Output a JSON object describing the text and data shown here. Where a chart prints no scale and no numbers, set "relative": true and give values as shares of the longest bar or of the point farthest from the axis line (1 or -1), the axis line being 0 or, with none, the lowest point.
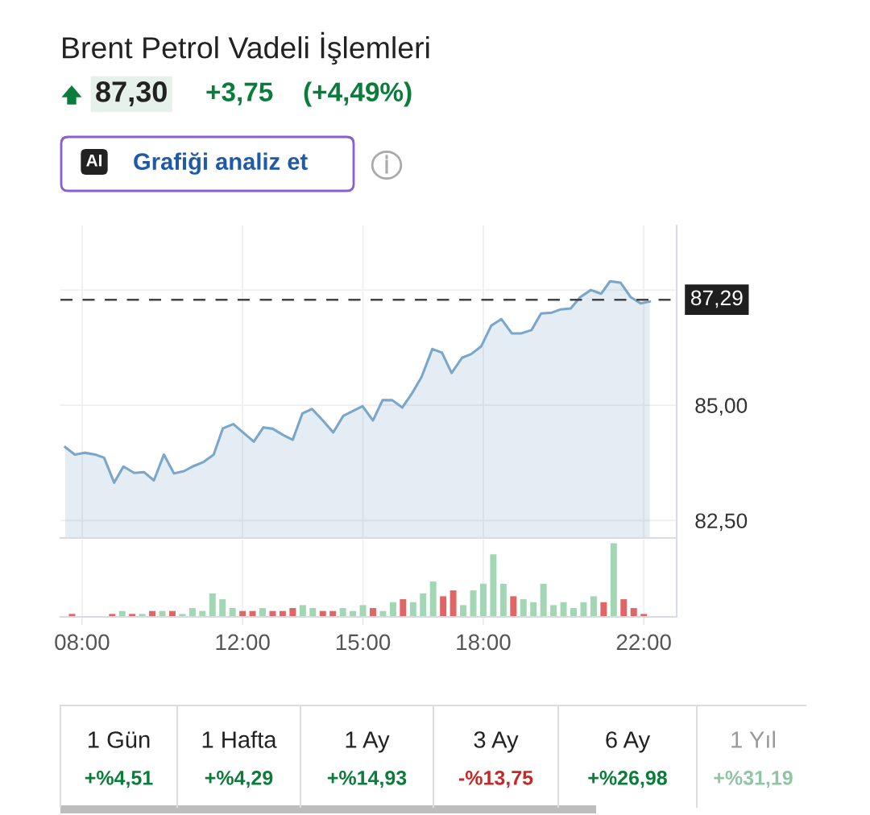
{
  "chart_data": [
    {
      "type": "area",
      "title": "Brent Petrol Vadeli İşlemleri",
      "annotations": [
        "87,30",
        "+3,75",
        "(+4,49%)",
        "AI",
        "Grafiği analiz et"
      ],
      "series": [
        {
          "color": "#7aa6ca",
          "x": [
            7.58,
            7.82,
            8.06,
            8.33,
            8.55,
            8.8,
            9.03,
            9.3,
            9.54,
            9.79,
            10.04,
            10.29,
            10.54,
            10.78,
            11.03,
            11.28,
            11.51,
            11.77,
            12.01,
            12.28,
            12.52,
            12.75,
            13.02,
            13.25,
            13.49,
            13.73,
            14.0,
            14.26,
            14.51,
            14.76,
            14.99,
            15.25,
            15.49,
            15.73,
            15.98,
            16.21,
            16.46,
            16.73,
            16.97,
            17.21,
            17.47,
            17.7,
            17.95,
            18.2,
            18.45,
            18.71,
            18.95,
            19.2,
            19.44,
            19.71,
            19.93,
            20.18,
            20.41,
            20.68,
            20.94,
            21.16,
            21.42,
            21.67,
            21.92,
            22.15
          ],
          "values": [
            84.09,
            83.93,
            83.97,
            83.93,
            83.86,
            83.32,
            83.67,
            83.53,
            83.55,
            83.37,
            83.93,
            83.52,
            83.57,
            83.68,
            83.77,
            83.93,
            84.5,
            84.59,
            84.41,
            84.21,
            84.52,
            84.49,
            84.35,
            84.25,
            84.82,
            84.92,
            84.67,
            84.41,
            84.77,
            84.88,
            84.98,
            84.67,
            85.11,
            85.11,
            84.95,
            85.24,
            85.61,
            86.22,
            86.14,
            85.7,
            86.03,
            86.11,
            86.28,
            86.73,
            86.87,
            86.56,
            86.56,
            86.63,
            86.99,
            87.01,
            87.08,
            87.1,
            87.34,
            87.5,
            87.42,
            87.69,
            87.66,
            87.35,
            87.21,
            87.25
          ]
        }
      ],
      "xlim": [
        7.46,
        22.82
      ],
      "ylim": [
        82.12,
        88.9
      ],
      "yticks": [
        {
          "value": 82.5,
          "label": "82,50"
        },
        {
          "value": 85,
          "label": "85,00"
        },
        {
          "value": 87.5,
          "label": null
        }
      ],
      "xticks": [
        {
          "value": 8,
          "label": null
        },
        {
          "value": 12,
          "label": null
        },
        {
          "value": 15,
          "label": null
        },
        {
          "value": 18,
          "label": null
        },
        {
          "value": 22,
          "label": null
        }
      ],
      "ref_lines": [
        {
          "axis": "y",
          "value": 87.29,
          "label": "87,29",
          "color": "#444444",
          "line_style": "dashed"
        }
      ],
      "grid": true,
      "tick_labels": "y"
    },
    {
      "type": "bar",
      "relative": true,
      "x": [
        7.75,
        8.75,
        9.0,
        9.25,
        9.5,
        9.75,
        10.0,
        10.25,
        10.5,
        10.75,
        11.0,
        11.25,
        11.5,
        11.75,
        12.0,
        12.25,
        12.5,
        12.75,
        13.0,
        13.25,
        13.5,
        13.75,
        14.0,
        14.25,
        14.5,
        14.75,
        15.0,
        15.25,
        15.5,
        15.75,
        16.0,
        16.25,
        16.5,
        16.75,
        17.0,
        17.25,
        17.5,
        17.75,
        18.0,
        18.25,
        18.5,
        18.75,
        19.0,
        19.25,
        19.5,
        19.75,
        20.0,
        20.25,
        20.5,
        20.75,
        21.0,
        21.25,
        21.5,
        21.75,
        22.0
      ],
      "values": [
        0.04,
        0.04,
        0.08,
        0.04,
        0.04,
        0.08,
        0.08,
        0.08,
        0.04,
        0.12,
        0.08,
        0.32,
        0.24,
        0.12,
        0.08,
        0.08,
        0.12,
        0.08,
        0.08,
        0.12,
        0.16,
        0.12,
        0.08,
        0.08,
        0.12,
        0.08,
        0.16,
        0.12,
        0.08,
        0.2,
        0.24,
        0.2,
        0.32,
        0.48,
        0.28,
        0.36,
        0.16,
        0.36,
        0.45,
        0.85,
        0.45,
        0.28,
        0.24,
        0.2,
        0.45,
        0.16,
        0.2,
        0.12,
        0.2,
        0.28,
        0.2,
        1.0,
        0.24,
        0.12,
        0.04
      ],
      "colors": [
        "#e06666",
        "#e06666",
        "#a3d6b5",
        "#e06666",
        "#a3d6b5",
        "#e06666",
        "#a3d6b5",
        "#e06666",
        "#a3d6b5",
        "#a3d6b5",
        "#a3d6b5",
        "#a3d6b5",
        "#a3d6b5",
        "#a3d6b5",
        "#e06666",
        "#e06666",
        "#a3d6b5",
        "#e06666",
        "#e06666",
        "#e06666",
        "#a3d6b5",
        "#a3d6b5",
        "#e06666",
        "#e06666",
        "#a3d6b5",
        "#a3d6b5",
        "#a3d6b5",
        "#e06666",
        "#a3d6b5",
        "#a3d6b5",
        "#e06666",
        "#a3d6b5",
        "#a3d6b5",
        "#a3d6b5",
        "#e06666",
        "#e06666",
        "#a3d6b5",
        "#a3d6b5",
        "#a3d6b5",
        "#a3d6b5",
        "#a3d6b5",
        "#e06666",
        "#a3d6b5",
        "#a3d6b5",
        "#a3d6b5",
        "#a3d6b5",
        "#a3d6b5",
        "#a3d6b5",
        "#a3d6b5",
        "#a3d6b5",
        "#e06666",
        "#a3d6b5",
        "#e06666",
        "#e06666",
        "#e06666"
      ],
      "xlim": [
        7.46,
        22.82
      ],
      "xticks": [
        {
          "value": 8,
          "label": "08:00"
        },
        {
          "value": 12,
          "label": "12:00"
        },
        {
          "value": 15,
          "label": "15:00"
        },
        {
          "value": 18,
          "label": "18:00"
        },
        {
          "value": 22,
          "label": "22:00"
        }
      ],
      "grid": "x",
      "tick_labels": "x"
    },
    {
      "type": "other",
      "categories": [
        "1 Gün",
        "1 Hafta",
        "1 Ay",
        "3 Ay",
        "6 Ay",
        "1 Yıl"
      ],
      "colors": [
        "#0a7d3a",
        "#0a7d3a",
        "#0a7d3a",
        "#c62828",
        "#0a7d3a",
        "#0a7d3a"
      ],
      "value_labels": [
        "+%4,51",
        "+%4,29",
        "+%14,93",
        "-%13,75",
        "+%26,98",
        "+%31,19"
      ]
    }
  ]
}
